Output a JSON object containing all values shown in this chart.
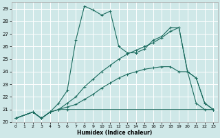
{
  "xlabel": "Humidex (Indice chaleur)",
  "bg_color": "#cfe8e8",
  "line_color": "#1a6b5e",
  "grid_color": "#b8d8d8",
  "xlim": [
    -0.5,
    23.5
  ],
  "ylim": [
    20,
    29.5
  ],
  "yticks": [
    20,
    21,
    22,
    23,
    24,
    25,
    26,
    27,
    28,
    29
  ],
  "xticks": [
    0,
    1,
    2,
    3,
    4,
    5,
    6,
    7,
    8,
    9,
    10,
    11,
    12,
    13,
    14,
    15,
    16,
    17,
    18,
    19,
    20,
    21,
    22,
    23
  ],
  "series": [
    {
      "x": [
        0,
        2,
        3,
        4,
        5,
        6,
        23
      ],
      "y": [
        20.3,
        20.8,
        20.3,
        20.8,
        21.0,
        21.0,
        21.0
      ]
    },
    {
      "x": [
        0,
        2,
        3,
        4,
        5,
        6,
        7,
        8,
        9,
        10,
        11,
        12,
        13,
        14,
        15,
        16,
        17,
        18,
        19,
        20,
        21,
        22,
        23
      ],
      "y": [
        20.3,
        20.8,
        20.3,
        20.8,
        21.0,
        21.2,
        21.4,
        21.8,
        22.2,
        22.7,
        23.1,
        23.5,
        23.8,
        24.0,
        24.2,
        24.3,
        24.4,
        24.4,
        24.0,
        24.0,
        21.5,
        21.0,
        21.0
      ]
    },
    {
      "x": [
        0,
        2,
        3,
        4,
        5,
        6,
        7,
        8,
        9,
        10,
        11,
        12,
        13,
        14,
        15,
        16,
        17,
        18,
        19,
        20,
        21,
        22,
        23
      ],
      "y": [
        20.3,
        20.8,
        20.3,
        20.8,
        21.0,
        21.5,
        22.0,
        22.8,
        23.4,
        24.0,
        24.5,
        25.0,
        25.4,
        25.7,
        26.0,
        26.3,
        26.7,
        27.2,
        27.5,
        24.0,
        23.5,
        21.5,
        21.0
      ]
    },
    {
      "x": [
        0,
        2,
        3,
        4,
        5,
        6,
        7,
        8,
        9,
        10,
        11,
        12,
        13,
        14,
        15,
        16,
        17,
        18,
        19,
        20,
        21,
        22,
        23
      ],
      "y": [
        20.3,
        20.8,
        20.3,
        20.8,
        21.5,
        22.5,
        26.5,
        29.2,
        28.9,
        28.5,
        28.8,
        26.0,
        25.5,
        25.5,
        25.8,
        26.5,
        26.8,
        27.5,
        27.5,
        24.0,
        23.5,
        21.5,
        21.0
      ]
    }
  ]
}
